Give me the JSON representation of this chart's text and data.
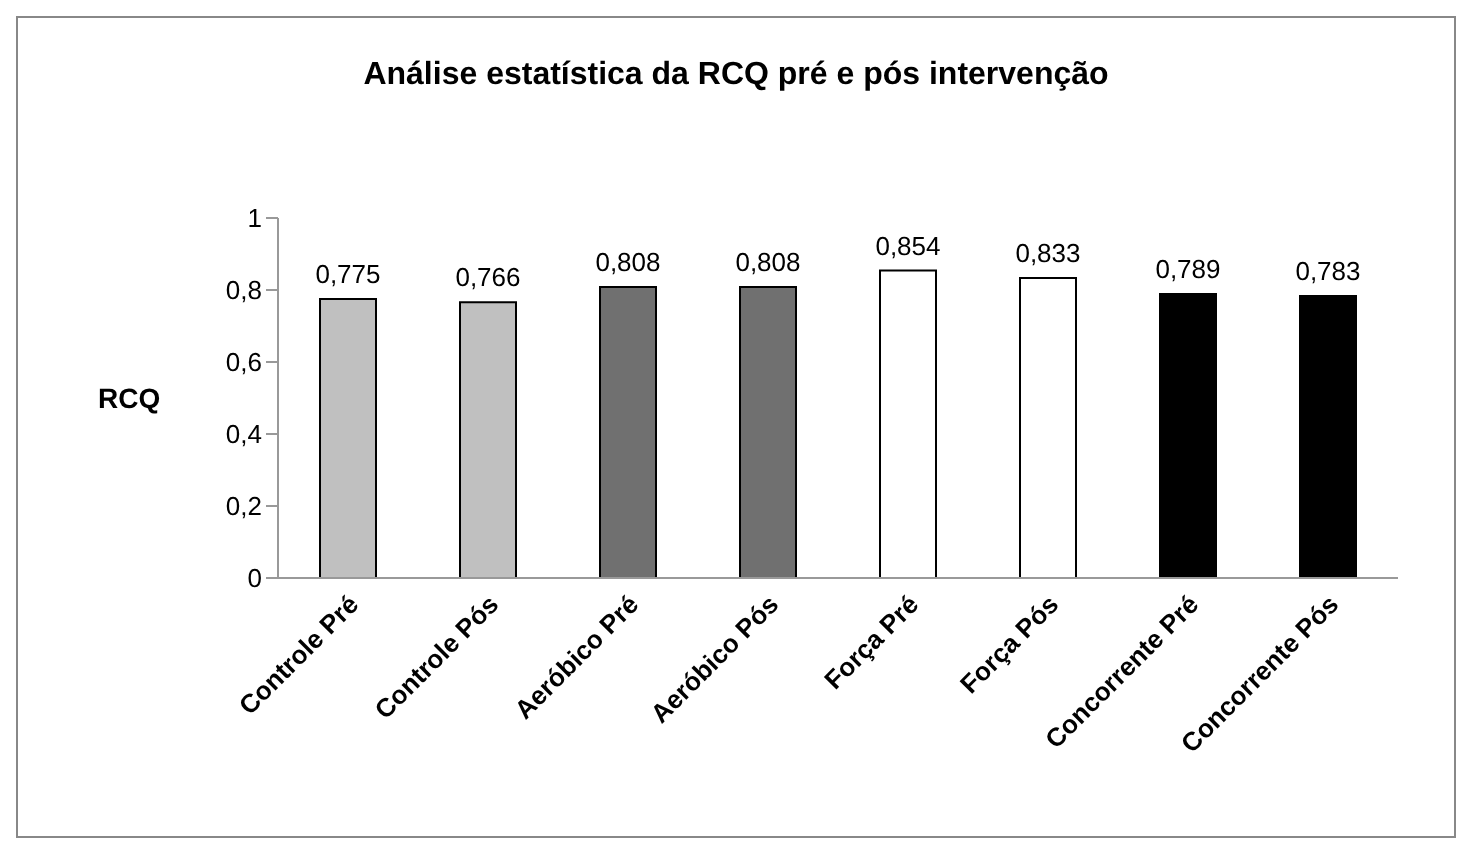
{
  "chart_data": {
    "type": "bar",
    "title": "Análise estatística da RCQ pré e pós intervenção",
    "ylabel": "RCQ",
    "categories": [
      "Controle Pré",
      "Controle Pós",
      "Aeróbico Pré",
      "Aeróbico Pós",
      "Força Pré",
      "Força Pós",
      "Concorrente Pré",
      "Concorrente Pós"
    ],
    "values": [
      0.775,
      0.766,
      0.808,
      0.808,
      0.854,
      0.833,
      0.789,
      0.783
    ],
    "colors": [
      "#c0c0c0",
      "#c0c0c0",
      "#707070",
      "#707070",
      "#ffffff",
      "#ffffff",
      "#000000",
      "#000000"
    ],
    "value_labels": [
      "0,775",
      "0,766",
      "0,808",
      "0,808",
      "0,854",
      "0,833",
      "0,789",
      "0,783"
    ],
    "ylim": [
      0,
      1
    ],
    "yticks": [
      {
        "value": 0,
        "label": "0"
      },
      {
        "value": 0.2,
        "label": "0,2"
      },
      {
        "value": 0.4,
        "label": "0,4"
      },
      {
        "value": 0.6,
        "label": "0,6"
      },
      {
        "value": 0.8,
        "label": "0,8"
      },
      {
        "value": 1,
        "label": "1"
      }
    ],
    "grid": false,
    "legend": false
  }
}
